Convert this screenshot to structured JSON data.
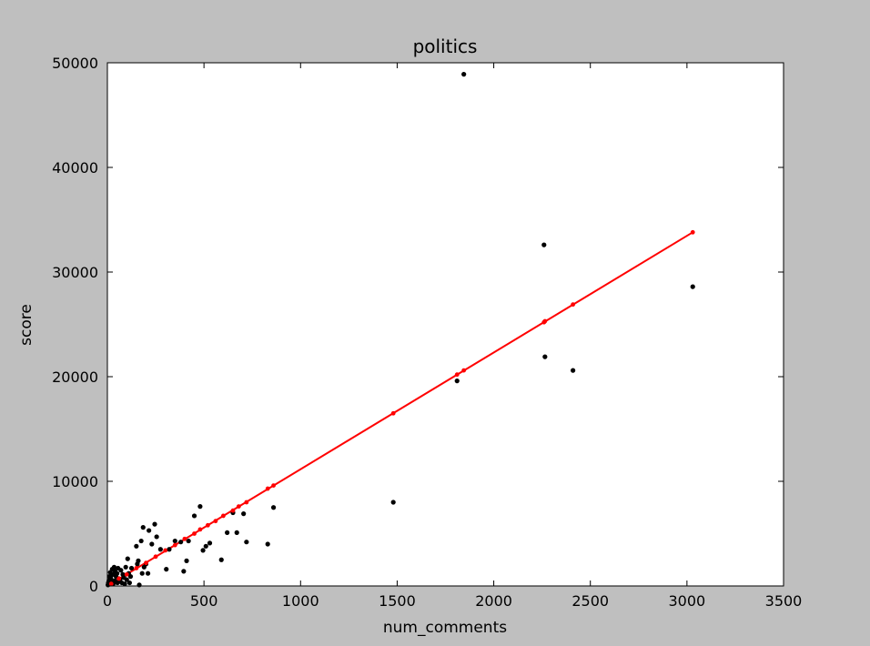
{
  "chart_data": {
    "type": "scatter",
    "title": "politics",
    "xlabel": "num_comments",
    "ylabel": "score",
    "xlim": [
      0,
      3500
    ],
    "ylim": [
      0,
      50000
    ],
    "xticks": [
      0,
      500,
      1000,
      1500,
      2000,
      2500,
      3000,
      3500
    ],
    "yticks": [
      0,
      10000,
      20000,
      30000,
      40000,
      50000
    ],
    "grid": false,
    "colors": {
      "background": "#bfbfbf",
      "plot_area": "#ffffff",
      "points": "#000000",
      "fit": "#ff0000"
    },
    "series": [
      {
        "kind": "scatter",
        "points": [
          [
            3,
            100
          ],
          [
            5,
            300
          ],
          [
            8,
            500
          ],
          [
            10,
            900
          ],
          [
            12,
            200
          ],
          [
            15,
            1300
          ],
          [
            18,
            700
          ],
          [
            20,
            1000
          ],
          [
            22,
            400
          ],
          [
            25,
            1600
          ],
          [
            28,
            1100
          ],
          [
            30,
            200
          ],
          [
            35,
            1800
          ],
          [
            38,
            500
          ],
          [
            40,
            1400
          ],
          [
            45,
            900
          ],
          [
            50,
            1200
          ],
          [
            52,
            300
          ],
          [
            55,
            1700
          ],
          [
            60,
            700
          ],
          [
            65,
            600
          ],
          [
            70,
            1500
          ],
          [
            75,
            300
          ],
          [
            80,
            1100
          ],
          [
            85,
            800
          ],
          [
            90,
            200
          ],
          [
            95,
            1800
          ],
          [
            100,
            600
          ],
          [
            105,
            2600
          ],
          [
            110,
            1200
          ],
          [
            115,
            300
          ],
          [
            120,
            900
          ],
          [
            125,
            1700
          ],
          [
            150,
            3800
          ],
          [
            155,
            2100
          ],
          [
            160,
            2400
          ],
          [
            165,
            100
          ],
          [
            175,
            4300
          ],
          [
            180,
            1200
          ],
          [
            185,
            5600
          ],
          [
            190,
            1800
          ],
          [
            200,
            2100
          ],
          [
            210,
            1200
          ],
          [
            215,
            5300
          ],
          [
            230,
            4000
          ],
          [
            245,
            5900
          ],
          [
            255,
            4700
          ],
          [
            275,
            3500
          ],
          [
            305,
            1600
          ],
          [
            320,
            3500
          ],
          [
            350,
            4300
          ],
          [
            380,
            4200
          ],
          [
            395,
            1400
          ],
          [
            410,
            2400
          ],
          [
            420,
            4300
          ],
          [
            450,
            6700
          ],
          [
            480,
            7600
          ],
          [
            495,
            3400
          ],
          [
            510,
            3800
          ],
          [
            530,
            4100
          ],
          [
            590,
            2500
          ],
          [
            620,
            5100
          ],
          [
            650,
            7000
          ],
          [
            670,
            5100
          ],
          [
            705,
            6900
          ],
          [
            720,
            4200
          ],
          [
            830,
            4000
          ],
          [
            860,
            7500
          ],
          [
            1480,
            8000
          ],
          [
            1810,
            19600
          ],
          [
            1845,
            48900
          ],
          [
            2260,
            32600
          ],
          [
            2265,
            21900
          ],
          [
            2410,
            20600
          ],
          [
            3030,
            28600
          ]
        ]
      },
      {
        "kind": "fit",
        "line": [
          [
            0,
            0
          ],
          [
            3030,
            33800
          ]
        ],
        "points": [
          [
            20,
            200
          ],
          [
            60,
            700
          ],
          [
            100,
            1100
          ],
          [
            150,
            1700
          ],
          [
            200,
            2200
          ],
          [
            250,
            2800
          ],
          [
            300,
            3400
          ],
          [
            350,
            3900
          ],
          [
            400,
            4500
          ],
          [
            450,
            5000
          ],
          [
            480,
            5400
          ],
          [
            520,
            5800
          ],
          [
            560,
            6200
          ],
          [
            600,
            6700
          ],
          [
            650,
            7200
          ],
          [
            680,
            7600
          ],
          [
            720,
            8000
          ],
          [
            830,
            9300
          ],
          [
            860,
            9600
          ],
          [
            1480,
            16500
          ],
          [
            1810,
            20200
          ],
          [
            1845,
            20600
          ],
          [
            2260,
            25200
          ],
          [
            2265,
            25300
          ],
          [
            2410,
            26900
          ],
          [
            3030,
            33800
          ]
        ]
      }
    ]
  }
}
